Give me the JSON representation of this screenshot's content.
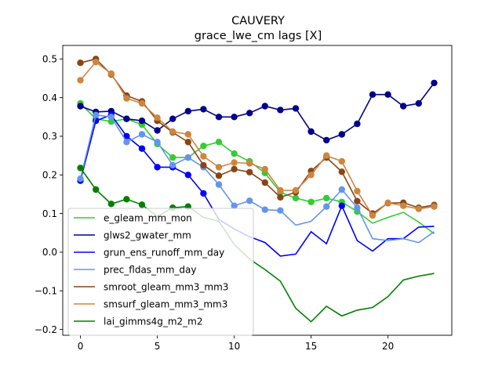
{
  "chart_data": {
    "type": "line",
    "title": "CAUVERY",
    "subtitle": "grace_lwe_cm lags [X]",
    "xlabel": "",
    "ylabel": "",
    "xlim": [
      -1.15,
      24.15
    ],
    "ylim": [
      -0.215,
      0.535
    ],
    "x_ticks": [
      0,
      5,
      10,
      15,
      20
    ],
    "y_ticks": [
      -0.2,
      -0.1,
      0.0,
      0.1,
      0.2,
      0.3,
      0.4,
      0.5
    ],
    "y_tick_labels": [
      "−0.2",
      "−0.1",
      "0.0",
      "0.1",
      "0.2",
      "0.3",
      "0.4",
      "0.5"
    ],
    "grid": false,
    "legend_position": "lower-left",
    "x": [
      0,
      1,
      2,
      3,
      4,
      5,
      6,
      7,
      8,
      9,
      10,
      11,
      12,
      13,
      14,
      15,
      16,
      17,
      18,
      19,
      20,
      21,
      22,
      23
    ],
    "series": [
      {
        "name": "e_gleam_mm_mon",
        "color": "#32cd32",
        "values": [
          0.385,
          0.345,
          0.338,
          0.345,
          0.33,
          0.28,
          0.245,
          0.245,
          0.275,
          0.285,
          0.255,
          0.235,
          0.205,
          0.155,
          0.14,
          0.13,
          0.14,
          0.13,
          0.105,
          0.075,
          0.09,
          0.103,
          0.078,
          0.048
        ],
        "markers": [
          true,
          true,
          true,
          true,
          true,
          true,
          true,
          true,
          true,
          true,
          true,
          true,
          true,
          true,
          true,
          true,
          true,
          true,
          true,
          false,
          false,
          false,
          false,
          false
        ]
      },
      {
        "name": "glws2_gwater_mm",
        "color": "#00008b",
        "values": [
          0.378,
          0.363,
          0.365,
          0.345,
          0.34,
          0.315,
          0.345,
          0.365,
          0.37,
          0.35,
          0.35,
          0.36,
          0.378,
          0.368,
          0.372,
          0.312,
          0.29,
          0.305,
          0.332,
          0.408,
          0.408,
          0.378,
          0.385,
          0.438
        ],
        "markers": [
          true,
          true,
          true,
          true,
          true,
          true,
          true,
          true,
          true,
          true,
          true,
          true,
          true,
          true,
          true,
          true,
          true,
          true,
          true,
          true,
          true,
          true,
          true,
          true
        ]
      },
      {
        "name": "grun_ens_runoff_mm_day",
        "color": "#0000ff",
        "values": [
          0.185,
          0.34,
          0.355,
          0.3,
          0.268,
          0.22,
          0.22,
          0.2,
          0.152,
          0.085,
          0.06,
          0.04,
          0.025,
          -0.01,
          -0.005,
          0.053,
          0.022,
          0.12,
          0.03,
          0.003,
          0.035,
          0.035,
          0.065,
          0.067
        ],
        "markers": [
          true,
          true,
          true,
          true,
          true,
          true,
          true,
          true,
          true,
          false,
          false,
          false,
          false,
          false,
          false,
          false,
          false,
          true,
          false,
          false,
          false,
          false,
          false,
          false
        ]
      },
      {
        "name": "prec_fldas_mm_day",
        "color": "#6495ed",
        "values": [
          0.19,
          0.355,
          0.35,
          0.285,
          0.305,
          0.285,
          0.225,
          0.245,
          0.22,
          0.175,
          0.12,
          0.133,
          0.11,
          0.108,
          0.07,
          0.08,
          0.118,
          0.162,
          0.115,
          0.035,
          0.03,
          0.035,
          0.025,
          0.053
        ],
        "markers": [
          true,
          true,
          true,
          true,
          true,
          true,
          true,
          true,
          true,
          true,
          true,
          true,
          true,
          true,
          false,
          false,
          true,
          true,
          true,
          false,
          false,
          false,
          false,
          false
        ]
      },
      {
        "name": "smroot_gleam_mm3_mm3",
        "color": "#8b4513",
        "values": [
          0.49,
          0.5,
          0.46,
          0.405,
          0.39,
          0.34,
          0.31,
          0.285,
          0.225,
          0.198,
          0.215,
          0.207,
          0.18,
          0.142,
          0.155,
          0.21,
          0.245,
          0.208,
          0.132,
          0.1,
          0.127,
          0.128,
          0.115,
          0.122
        ],
        "markers": [
          true,
          true,
          true,
          true,
          true,
          true,
          true,
          true,
          true,
          true,
          true,
          true,
          true,
          true,
          true,
          true,
          true,
          true,
          true,
          true,
          true,
          true,
          true,
          true
        ]
      },
      {
        "name": "smsurf_gleam_mm3_mm3",
        "color": "#cd853f",
        "values": [
          0.445,
          0.492,
          0.462,
          0.398,
          0.385,
          0.348,
          0.312,
          0.305,
          0.248,
          0.22,
          0.232,
          0.23,
          0.215,
          0.16,
          0.16,
          0.2,
          0.25,
          0.235,
          0.158,
          0.095,
          0.128,
          0.12,
          0.112,
          0.118
        ],
        "markers": [
          true,
          true,
          true,
          true,
          true,
          true,
          true,
          true,
          true,
          true,
          true,
          true,
          true,
          true,
          true,
          true,
          true,
          true,
          true,
          true,
          true,
          true,
          true,
          true
        ]
      },
      {
        "name": "lai_gimms4g_m2_m2",
        "color": "#008000",
        "values": [
          0.218,
          0.162,
          0.125,
          0.137,
          0.123,
          0.092,
          0.115,
          0.118,
          0.09,
          0.08,
          0.02,
          -0.018,
          -0.045,
          -0.075,
          -0.145,
          -0.18,
          -0.14,
          -0.165,
          -0.15,
          -0.143,
          -0.115,
          -0.072,
          -0.062,
          -0.055
        ],
        "markers": [
          true,
          true,
          true,
          true,
          true,
          false,
          true,
          true,
          false,
          false,
          false,
          false,
          false,
          false,
          false,
          false,
          false,
          false,
          false,
          false,
          false,
          false,
          false,
          false
        ]
      }
    ]
  }
}
